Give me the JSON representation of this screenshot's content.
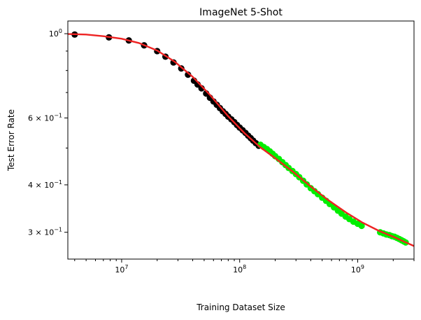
{
  "chart_data": {
    "type": "scatter",
    "title": "ImageNet 5-Shot",
    "xlabel": "Training Dataset Size",
    "ylabel": "Test Error Rate",
    "xscale": "log",
    "yscale": "log",
    "xlim": [
      3500000,
      3000000000
    ],
    "ylim": [
      0.255,
      1.08
    ],
    "grid": false,
    "x_ticks": [
      {
        "value": 10000000,
        "base": "10",
        "exp": "7"
      },
      {
        "value": 100000000,
        "base": "10",
        "exp": "8"
      },
      {
        "value": 1000000000,
        "base": "10",
        "exp": "9"
      }
    ],
    "y_ticks": [
      {
        "value": 1.0,
        "base": "10",
        "exp": "0",
        "mult": ""
      },
      {
        "value": 0.6,
        "base": "10",
        "exp": "−1",
        "mult": "6 × "
      },
      {
        "value": 0.4,
        "base": "10",
        "exp": "−1",
        "mult": "4 × "
      },
      {
        "value": 0.3,
        "base": "10",
        "exp": "−1",
        "mult": "3 × "
      }
    ],
    "colors": {
      "train": "#000000",
      "holdout": "#00ee00",
      "fit": "#ee2222"
    },
    "series": [
      {
        "color": "#000000",
        "x": [
          4000000,
          7800000,
          11500000,
          15500000,
          20000000,
          23500000,
          27500000,
          32000000,
          36500000,
          41000000,
          44000000,
          47500000,
          52000000,
          56000000,
          60000000,
          64000000,
          68000000,
          72000000,
          76000000,
          80000000,
          85000000,
          90000000,
          95000000,
          100000000,
          106000000,
          112000000,
          118000000,
          124000000,
          130000000,
          137000000,
          145000000
        ],
        "y": [
          0.995,
          0.978,
          0.96,
          0.932,
          0.9,
          0.87,
          0.84,
          0.81,
          0.78,
          0.752,
          0.735,
          0.718,
          0.696,
          0.678,
          0.663,
          0.65,
          0.637,
          0.625,
          0.615,
          0.605,
          0.595,
          0.585,
          0.575,
          0.566,
          0.557,
          0.548,
          0.539,
          0.531,
          0.523,
          0.515,
          0.507
        ]
      },
      {
        "color": "#00ee00",
        "x": [
          150000000,
          160000000,
          170000000,
          180000000,
          190000000,
          200000000,
          215000000,
          230000000,
          245000000,
          260000000,
          280000000,
          300000000,
          320000000,
          345000000,
          370000000,
          400000000,
          430000000,
          460000000,
          500000000,
          540000000,
          580000000,
          630000000,
          680000000,
          730000000,
          790000000,
          850000000,
          920000000,
          1000000000,
          1080000000,
          1550000000,
          1650000000,
          1750000000,
          1850000000,
          1950000000,
          2050000000,
          2150000000,
          2250000000,
          2350000000,
          2450000000,
          2550000000
        ],
        "y": [
          0.51,
          0.503,
          0.497,
          0.49,
          0.483,
          0.476,
          0.468,
          0.459,
          0.451,
          0.443,
          0.435,
          0.427,
          0.419,
          0.41,
          0.401,
          0.392,
          0.385,
          0.378,
          0.37,
          0.363,
          0.356,
          0.349,
          0.342,
          0.336,
          0.33,
          0.325,
          0.32,
          0.316,
          0.312,
          0.3,
          0.298,
          0.296,
          0.295,
          0.293,
          0.292,
          0.29,
          0.288,
          0.286,
          0.284,
          0.282
        ]
      }
    ],
    "fit_line": {
      "color": "#ee2222",
      "x": [
        3500000,
        5000000,
        7000000,
        10000000,
        14000000,
        20000000,
        28000000,
        40000000,
        56000000,
        80000000,
        110000000,
        150000000,
        200000000,
        280000000,
        400000000,
        560000000,
        800000000,
        1100000000,
        1500000000,
        2000000000,
        2500000000,
        3000000000
      ],
      "y": [
        0.998,
        0.995,
        0.985,
        0.97,
        0.945,
        0.903,
        0.845,
        0.77,
        0.69,
        0.606,
        0.547,
        0.502,
        0.47,
        0.434,
        0.396,
        0.365,
        0.338,
        0.318,
        0.303,
        0.292,
        0.283,
        0.276
      ]
    }
  }
}
